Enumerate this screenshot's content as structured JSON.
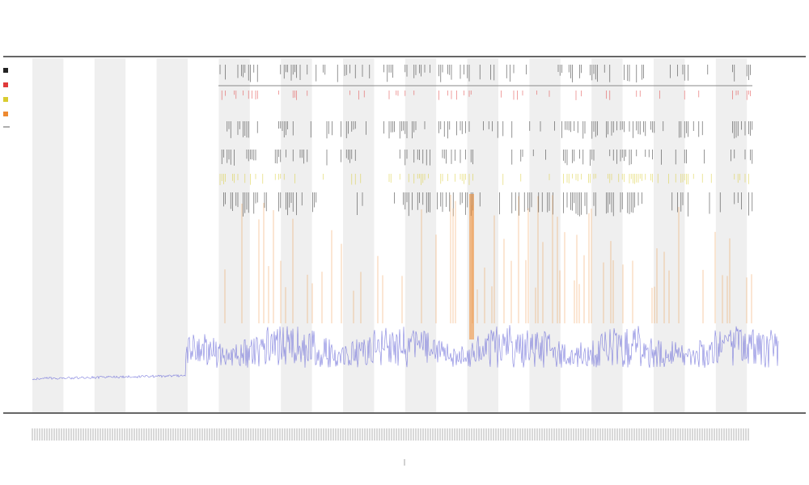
{
  "header": {
    "title": "",
    "subtitle_1": "",
    "subtitle_2": ""
  },
  "chart_data": {
    "type": "area",
    "title": "",
    "xlabel": "",
    "ylabel": "",
    "grid": false,
    "legend": "top-left",
    "shaded_bands": true,
    "colors": {
      "background_band": "#efefef",
      "baseline_series": "#6a6ad8",
      "event_ticks_dark": "#222222",
      "event_ticks_red": "#e03a3a",
      "event_ticks_yellow": "#d9cc30",
      "event_ticks_orange": "#ee8a30",
      "axis": "#333333"
    },
    "x_range": [
      0,
      1000
    ],
    "y_range": [
      0,
      1
    ],
    "series": [
      {
        "name": "",
        "color": "#6a6ad8",
        "kind": "density_line"
      },
      {
        "name": "",
        "color": "#222222",
        "kind": "event_ticks"
      },
      {
        "name": "",
        "color": "#e03a3a",
        "kind": "event_ticks"
      },
      {
        "name": "",
        "color": "#d9cc30",
        "kind": "event_ticks"
      },
      {
        "name": "",
        "color": "#ee8a30",
        "kind": "event_ticks"
      }
    ]
  }
}
